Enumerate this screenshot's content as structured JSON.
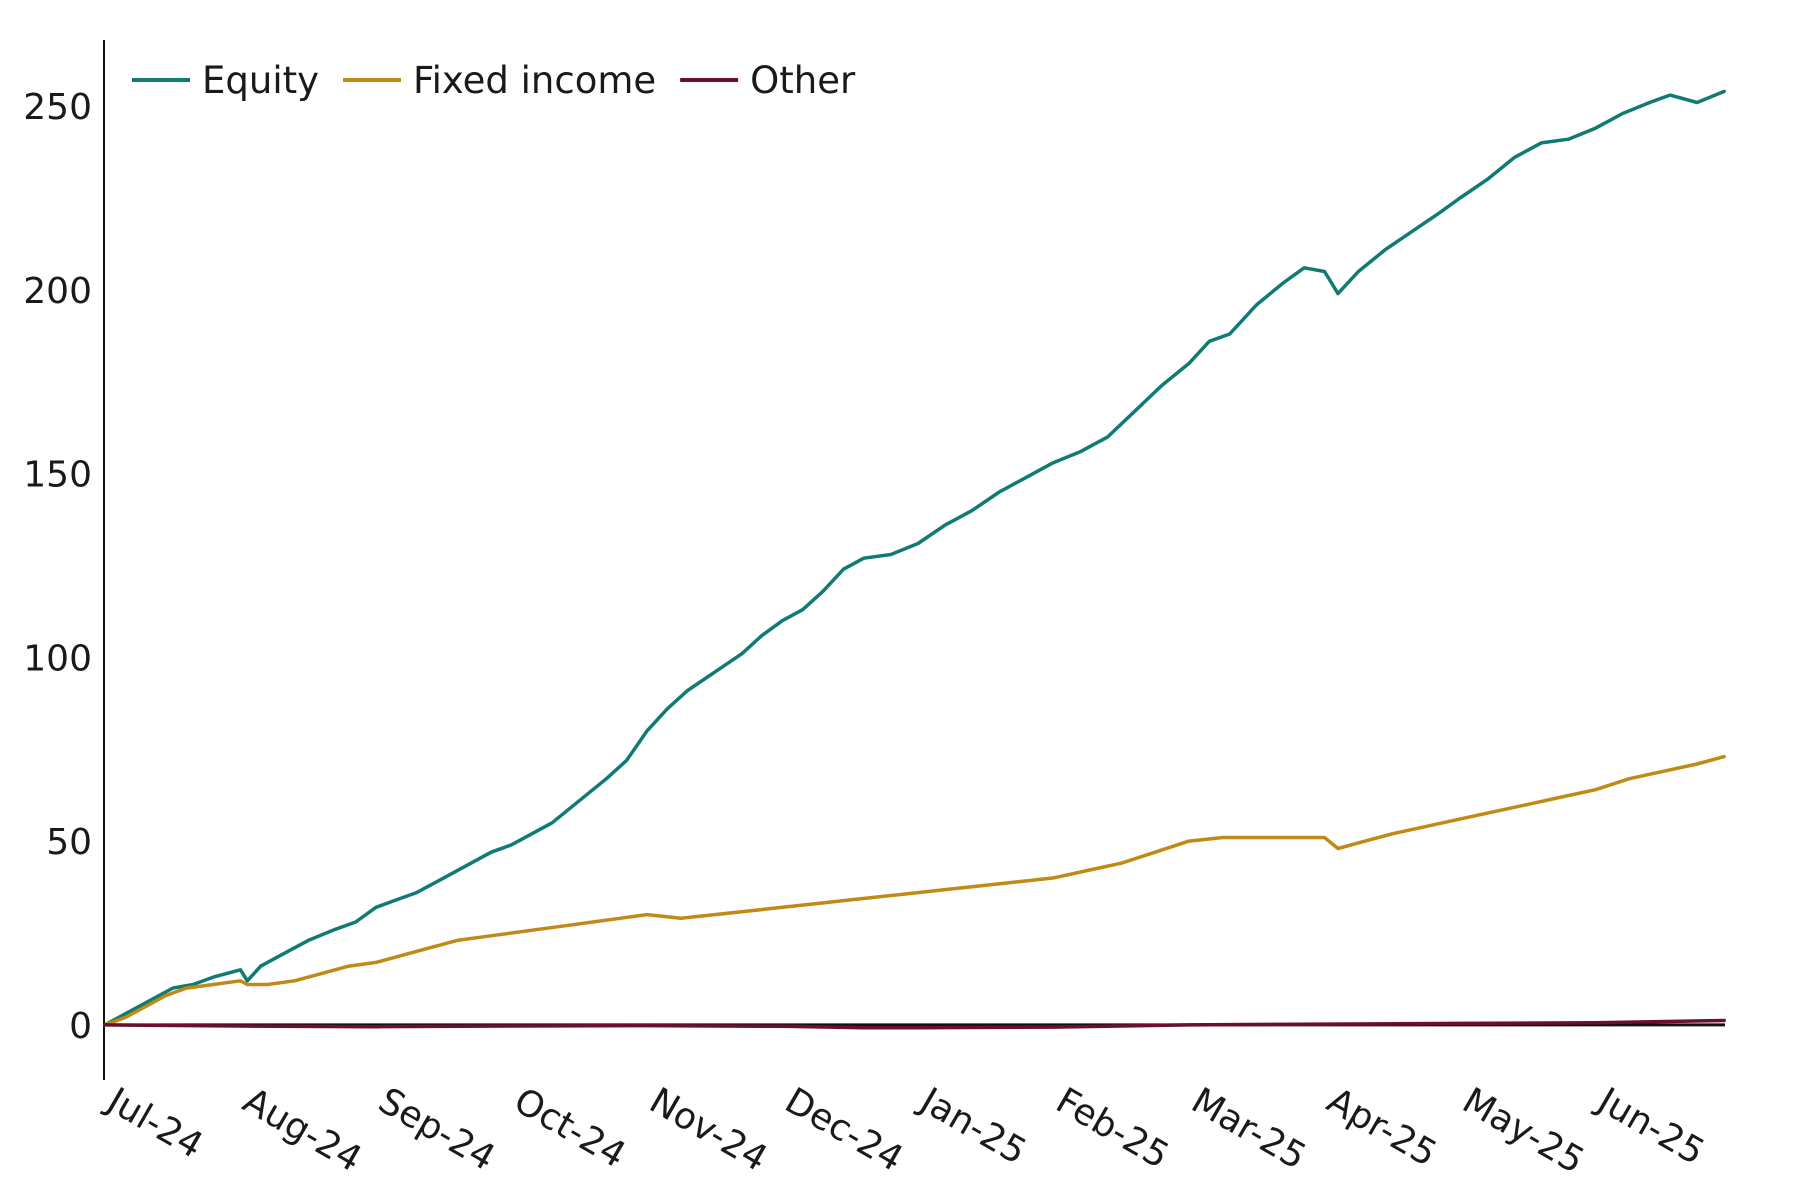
{
  "chart_data": {
    "type": "line",
    "title": "",
    "xlabel": "",
    "ylabel": "",
    "categories": [
      "Jul-24",
      "Aug-24",
      "Sep-24",
      "Oct-24",
      "Nov-24",
      "Dec-24",
      "Jan-25",
      "Feb-25",
      "Mar-25",
      "Apr-25",
      "May-25",
      "Jun-25"
    ],
    "x_ticks": [
      "Jul-24",
      "Aug-24",
      "Sep-24",
      "Oct-24",
      "Nov-24",
      "Dec-24",
      "Jan-25",
      "Feb-25",
      "Mar-25",
      "Apr-25",
      "May-25",
      "Jun-25"
    ],
    "y_ticks": [
      0,
      50,
      100,
      150,
      200,
      250
    ],
    "ylim": [
      -15,
      268
    ],
    "grid": false,
    "zero_line": true,
    "legend_position": "top-left",
    "series": [
      {
        "name": "Equity",
        "color": "#0f7b73",
        "points": [
          [
            "Jul-24",
            0
          ],
          [
            "Jul-24+0.1",
            2
          ],
          [
            "Jul-24+0.2",
            4
          ],
          [
            "Jul-24+0.35",
            7
          ],
          [
            "Jul-24+0.5",
            10
          ],
          [
            "Jul-24+0.65",
            11
          ],
          [
            "Jul-24+0.8",
            13
          ],
          [
            "Aug-24",
            15
          ],
          [
            "Aug-24+0.05",
            12
          ],
          [
            "Aug-24+0.15",
            16
          ],
          [
            "Aug-24+0.3",
            19
          ],
          [
            "Aug-24+0.5",
            23
          ],
          [
            "Aug-24+0.7",
            26
          ],
          [
            "Aug-24+0.85",
            28
          ],
          [
            "Sep-24",
            32
          ],
          [
            "Sep-24+0.15",
            34
          ],
          [
            "Sep-24+0.3",
            36
          ],
          [
            "Sep-24+0.5",
            40
          ],
          [
            "Sep-24+0.7",
            44
          ],
          [
            "Sep-24+0.85",
            47
          ],
          [
            "Oct-24",
            49
          ],
          [
            "Oct-24+0.15",
            52
          ],
          [
            "Oct-24+0.3",
            55
          ],
          [
            "Oct-24+0.5",
            61
          ],
          [
            "Oct-24+0.7",
            67
          ],
          [
            "Oct-24+0.85",
            72
          ],
          [
            "Nov-24",
            80
          ],
          [
            "Nov-24+0.15",
            86
          ],
          [
            "Nov-24+0.3",
            91
          ],
          [
            "Nov-24+0.5",
            96
          ],
          [
            "Nov-24+0.7",
            101
          ],
          [
            "Nov-24+0.85",
            106
          ],
          [
            "Dec-24",
            110
          ],
          [
            "Dec-24+0.15",
            113
          ],
          [
            "Dec-24+0.3",
            118
          ],
          [
            "Dec-24+0.45",
            124
          ],
          [
            "Dec-24+0.6",
            127
          ],
          [
            "Dec-24+0.8",
            128
          ],
          [
            "Jan-25",
            131
          ],
          [
            "Jan-25+0.2",
            136
          ],
          [
            "Jan-25+0.4",
            140
          ],
          [
            "Jan-25+0.6",
            145
          ],
          [
            "Jan-25+0.8",
            149
          ],
          [
            "Feb-25",
            153
          ],
          [
            "Feb-25+0.2",
            156
          ],
          [
            "Feb-25+0.4",
            160
          ],
          [
            "Feb-25+0.6",
            167
          ],
          [
            "Feb-25+0.8",
            174
          ],
          [
            "Mar-25",
            180
          ],
          [
            "Mar-25+0.15",
            186
          ],
          [
            "Mar-25+0.3",
            188
          ],
          [
            "Mar-25+0.5",
            196
          ],
          [
            "Mar-25+0.7",
            202
          ],
          [
            "Mar-25+0.85",
            206
          ],
          [
            "Apr-25",
            205
          ],
          [
            "Apr-25+0.05",
            202
          ],
          [
            "Apr-25+0.1",
            199
          ],
          [
            "Apr-25+0.25",
            205
          ],
          [
            "Apr-25+0.45",
            211
          ],
          [
            "Apr-25+0.65",
            216
          ],
          [
            "Apr-25+0.85",
            221
          ],
          [
            "May-25",
            225
          ],
          [
            "May-25+0.2",
            230
          ],
          [
            "May-25+0.4",
            236
          ],
          [
            "May-25+0.6",
            240
          ],
          [
            "May-25+0.8",
            241
          ],
          [
            "Jun-25",
            244
          ],
          [
            "Jun-25+0.2",
            248
          ],
          [
            "Jun-25+0.4",
            251
          ],
          [
            "Jun-25+0.55",
            253
          ],
          [
            "Jun-25+0.75",
            251
          ],
          [
            "Jun-25+0.95",
            254
          ]
        ]
      },
      {
        "name": "Fixed income",
        "color": "#c18a16",
        "points": [
          [
            "Jul-24",
            0
          ],
          [
            "Jul-24+0.15",
            2
          ],
          [
            "Jul-24+0.3",
            5
          ],
          [
            "Jul-24+0.45",
            8
          ],
          [
            "Jul-24+0.6",
            10
          ],
          [
            "Jul-24+0.8",
            11
          ],
          [
            "Aug-24",
            12
          ],
          [
            "Aug-24+0.05",
            11
          ],
          [
            "Aug-24+0.2",
            11
          ],
          [
            "Aug-24+0.4",
            12
          ],
          [
            "Aug-24+0.6",
            14
          ],
          [
            "Aug-24+0.8",
            16
          ],
          [
            "Sep-24",
            17
          ],
          [
            "Sep-24+0.2",
            19
          ],
          [
            "Sep-24+0.4",
            21
          ],
          [
            "Sep-24+0.6",
            23
          ],
          [
            "Sep-24+0.8",
            24
          ],
          [
            "Oct-24",
            25
          ],
          [
            "Oct-24+0.2",
            26
          ],
          [
            "Oct-24+0.4",
            27
          ],
          [
            "Oct-24+0.6",
            28
          ],
          [
            "Oct-24+0.8",
            29
          ],
          [
            "Nov-24",
            30
          ],
          [
            "Nov-24+0.25",
            29
          ],
          [
            "Nov-24+0.5",
            30
          ],
          [
            "Nov-24+0.75",
            31
          ],
          [
            "Dec-24",
            32
          ],
          [
            "Dec-24+0.25",
            33
          ],
          [
            "Dec-24+0.5",
            34
          ],
          [
            "Dec-24+0.75",
            35
          ],
          [
            "Jan-25",
            36
          ],
          [
            "Jan-25+0.25",
            37
          ],
          [
            "Jan-25+0.5",
            38
          ],
          [
            "Jan-25+0.75",
            39
          ],
          [
            "Feb-25",
            40
          ],
          [
            "Feb-25+0.25",
            42
          ],
          [
            "Feb-25+0.5",
            44
          ],
          [
            "Feb-25+0.75",
            47
          ],
          [
            "Mar-25",
            50
          ],
          [
            "Mar-25+0.25",
            51
          ],
          [
            "Mar-25+0.5",
            51
          ],
          [
            "Mar-25+0.75",
            51
          ],
          [
            "Apr-25",
            51
          ],
          [
            "Apr-25+0.1",
            48
          ],
          [
            "Apr-25+0.3",
            50
          ],
          [
            "Apr-25+0.5",
            52
          ],
          [
            "Apr-25+0.75",
            54
          ],
          [
            "May-25",
            56
          ],
          [
            "May-25+0.25",
            58
          ],
          [
            "May-25+0.5",
            60
          ],
          [
            "May-25+0.75",
            62
          ],
          [
            "Jun-25",
            64
          ],
          [
            "Jun-25+0.25",
            67
          ],
          [
            "Jun-25+0.5",
            69
          ],
          [
            "Jun-25+0.75",
            71
          ],
          [
            "Jun-25+0.95",
            73
          ]
        ]
      },
      {
        "name": "Other",
        "color": "#6b0f2a",
        "points": [
          [
            "Jul-24",
            0
          ],
          [
            "Aug-24",
            -0.3
          ],
          [
            "Sep-24",
            -0.5
          ],
          [
            "Oct-24",
            -0.3
          ],
          [
            "Nov-24",
            -0.2
          ],
          [
            "Dec-24",
            -0.4
          ],
          [
            "Dec-24+0.6",
            -0.8
          ],
          [
            "Jan-25",
            -0.8
          ],
          [
            "Feb-25",
            -0.6
          ],
          [
            "Mar-25",
            0
          ],
          [
            "Apr-25",
            0.2
          ],
          [
            "May-25",
            0.4
          ],
          [
            "Jun-25",
            0.6
          ],
          [
            "Jun-25+0.95",
            1.2
          ]
        ]
      }
    ]
  }
}
